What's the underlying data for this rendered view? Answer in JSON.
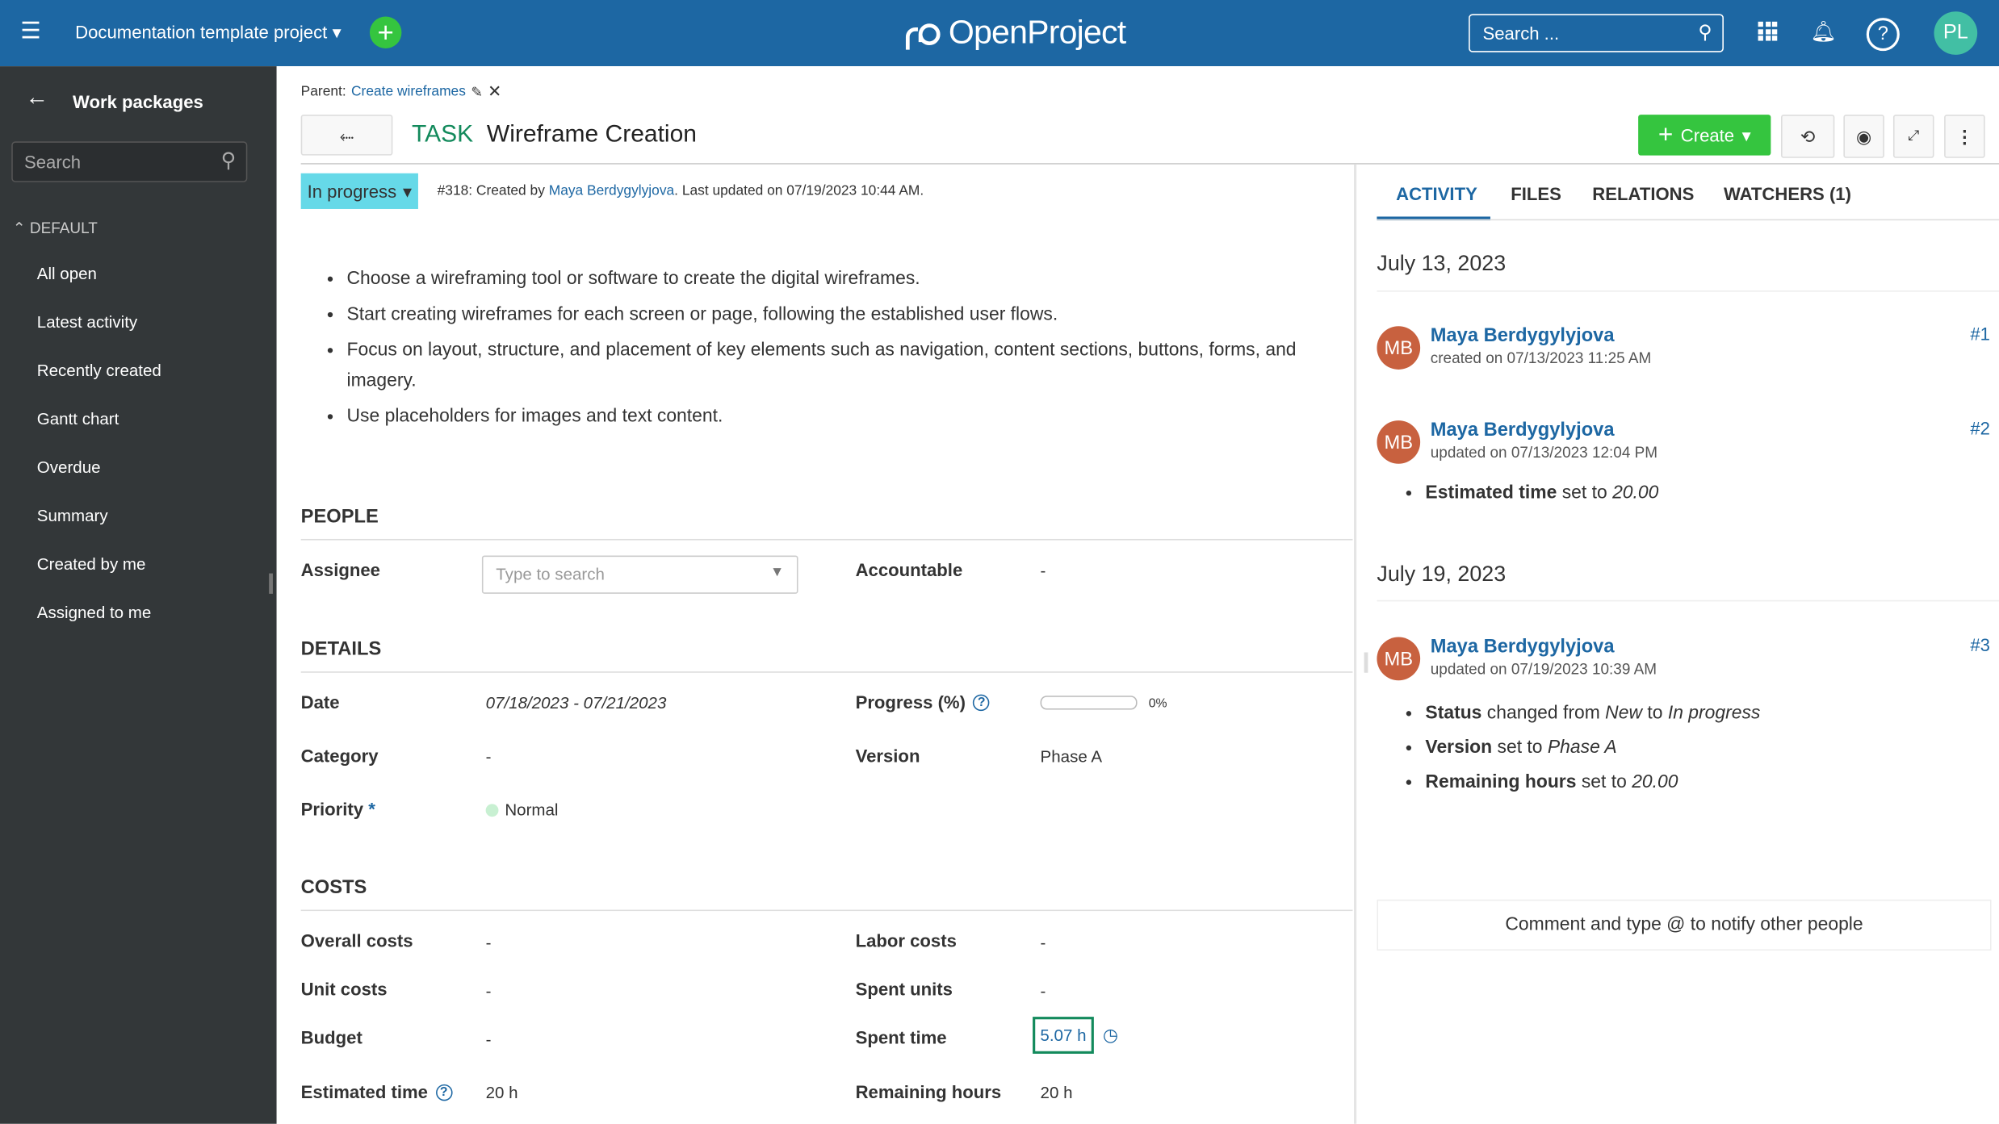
{
  "header": {
    "project": "Documentation template project",
    "logo": "OpenProject",
    "search_placeholder": "Search ...",
    "avatar": "PL",
    "colors": {
      "bar": "#1d67a3",
      "add": "#35c53f",
      "avatar": "#42bfa4"
    }
  },
  "sidebar": {
    "title": "Work packages",
    "search_placeholder": "Search",
    "group": "DEFAULT",
    "items": [
      "All open",
      "Latest activity",
      "Recently created",
      "Gantt chart",
      "Overdue",
      "Summary",
      "Created by me",
      "Assigned to me"
    ]
  },
  "wp": {
    "parent_label": "Parent:",
    "parent": "Create wireframes",
    "type": "TASK",
    "title": "Wireframe Creation",
    "status": "In progress",
    "meta_prefix": "#318: Created by",
    "author": "Maya Berdygylyjova",
    "meta_suffix": ". Last updated on 07/19/2023 10:44 AM.",
    "description": [
      "Choose a wireframing tool or software to create the digital wireframes.",
      "Start creating wireframes for each screen or page, following the established user flows.",
      "Focus on layout, structure, and placement of key elements such as navigation, content sections, buttons, forms, and imagery.",
      "Use placeholders for images and text content."
    ]
  },
  "toolbar": {
    "create": "Create"
  },
  "people": {
    "heading": "PEOPLE",
    "assignee_label": "Assignee",
    "assignee_placeholder": "Type to search",
    "accountable_label": "Accountable",
    "accountable": "-"
  },
  "details": {
    "heading": "DETAILS",
    "date_label": "Date",
    "date": "07/18/2023 - 07/21/2023",
    "progress_label": "Progress (%)",
    "progress": "0%",
    "progress_value": 0,
    "category_label": "Category",
    "category": "-",
    "version_label": "Version",
    "version": "Phase A",
    "priority_label": "Priority",
    "priority_required": "*",
    "priority": "Normal"
  },
  "costs": {
    "heading": "COSTS",
    "overall_label": "Overall costs",
    "overall": "-",
    "labor_label": "Labor costs",
    "labor": "-",
    "unit_label": "Unit costs",
    "unit": "-",
    "spent_units_label": "Spent units",
    "spent_units": "-",
    "budget_label": "Budget",
    "budget": "-",
    "spent_time_label": "Spent time",
    "spent_time": "5.07 h",
    "estimated_label": "Estimated time",
    "estimated": "20 h",
    "remaining_label": "Remaining hours",
    "remaining": "20 h"
  },
  "activity": {
    "tabs": [
      "ACTIVITY",
      "FILES",
      "RELATIONS",
      "WATCHERS (1)"
    ],
    "day1": "July 13, 2023",
    "day2": "July 19, 2023",
    "entries": [
      {
        "initials": "MB",
        "name": "Maya Berdygylyjova",
        "meta": "created on 07/13/2023 11:25 AM",
        "num": "#1"
      },
      {
        "initials": "MB",
        "name": "Maya Berdygylyjova",
        "meta": "updated on 07/13/2023 12:04 PM",
        "num": "#2"
      },
      {
        "initials": "MB",
        "name": "Maya Berdygylyjova",
        "meta": "updated on 07/19/2023 10:39 AM",
        "num": "#3"
      }
    ],
    "c2": {
      "field": "Estimated time",
      "mid": " set to ",
      "value": "20.00"
    },
    "c3a": {
      "field": "Status",
      "mid": " changed from ",
      "from": "New",
      "to_word": " to ",
      "to": "In progress"
    },
    "c3b": {
      "field": "Version",
      "mid": " set to ",
      "value": "Phase A"
    },
    "c3c": {
      "field": "Remaining hours",
      "mid": " set to ",
      "value": "20.00"
    },
    "comment_placeholder": "Comment and type @ to notify other people"
  }
}
